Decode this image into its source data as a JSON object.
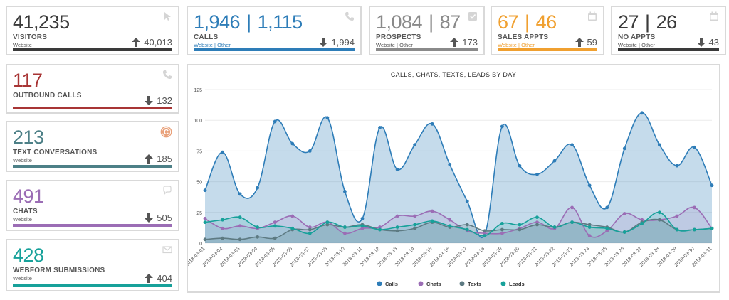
{
  "colors": {
    "visitors": "#3a3a3a",
    "calls": "#2e7db8",
    "prospects": "#8a8a8a",
    "sales": "#f0a030",
    "noappts": "#3a3a3a",
    "outbound": "#a83535",
    "texts": "#4d8087",
    "chats": "#9b6db5",
    "webform": "#17a19a",
    "icon": "#d5d5d5"
  },
  "cards": {
    "visitors": {
      "value": "41,235",
      "label": "VISITORS",
      "sub": "Website",
      "delta_dir": "up",
      "delta": "40,013",
      "icon": "cursor-icon"
    },
    "calls": {
      "value1": "1,946",
      "value2": "1,115",
      "sep": "|",
      "label": "CALLS",
      "sub": "Website | Other",
      "delta_dir": "down",
      "delta": "1,994",
      "icon": "phone-icon"
    },
    "prospects": {
      "value1": "1,084",
      "value2": "87",
      "sep": "|",
      "label": "PROSPECTS",
      "sub": "Website | Other",
      "delta_dir": "up",
      "delta": "173",
      "icon": "checkbox-icon"
    },
    "sales_appts": {
      "value1": "67",
      "value2": "46",
      "sep": "|",
      "label": "SALES APPTS",
      "sub": "Website | Other",
      "delta_dir": "up",
      "delta": "59",
      "icon": "calendar-icon"
    },
    "no_appts": {
      "value1": "27",
      "value2": "26",
      "sep": "|",
      "label": "NO APPTS",
      "sub": "Website | Other",
      "delta_dir": "down",
      "delta": "43",
      "icon": "calendar-icon"
    },
    "outbound": {
      "value": "117",
      "label": "OUTBOUND CALLS",
      "sub": "",
      "delta_dir": "down",
      "delta": "132",
      "icon": "phone-icon"
    },
    "texts": {
      "value": "213",
      "label": "TEXT CONVERSATIONS",
      "sub": "Website",
      "delta_dir": "up",
      "delta": "185",
      "icon": "text-c-icon"
    },
    "chats": {
      "value": "491",
      "label": "CHATS",
      "sub": "Website",
      "delta_dir": "down",
      "delta": "505",
      "icon": "chat-bubble-icon"
    },
    "webform": {
      "value": "428",
      "label": "WEBFORM SUBMISSIONS",
      "sub": "Website",
      "delta_dir": "up",
      "delta": "404",
      "icon": "envelope-icon"
    }
  },
  "chart_data": {
    "type": "area",
    "title": "CALLS, CHATS, TEXTS, LEADS BY DAY",
    "ylim": [
      0,
      125
    ],
    "yticks": [
      0,
      25,
      50,
      75,
      100,
      125
    ],
    "grid": true,
    "legend_position": "bottom",
    "x": [
      "2018-03-01",
      "2018-03-02",
      "2018-03-03",
      "2018-03-04",
      "2018-03-05",
      "2018-03-06",
      "2018-03-07",
      "2018-03-08",
      "2018-03-10",
      "2018-03-11",
      "2018-03-12",
      "2018-03-13",
      "2018-03-14",
      "2018-03-15",
      "2018-03-16",
      "2018-03-17",
      "2018-03-18",
      "2018-03-19",
      "2018-03-20",
      "2018-03-21",
      "2018-03-22",
      "2018-03-23",
      "2018-03-24",
      "2018-03-25",
      "2018-03-26",
      "2018-03-27",
      "2018-03-28",
      "2018-03-29",
      "2018-03-30",
      "2018-03-31"
    ],
    "series": [
      {
        "name": "Calls",
        "color": "#2e7db8",
        "values": [
          43,
          74,
          40,
          45,
          99,
          81,
          75,
          102,
          42,
          20,
          94,
          60,
          80,
          97,
          64,
          34,
          7,
          95,
          63,
          56,
          67,
          80,
          47,
          29,
          77,
          106,
          80,
          63,
          78,
          47
        ]
      },
      {
        "name": "Chats",
        "color": "#9b6db5",
        "values": [
          20,
          12,
          14,
          12,
          17,
          22,
          13,
          17,
          8,
          12,
          13,
          22,
          22,
          26,
          19,
          10,
          8,
          8,
          12,
          17,
          12,
          29,
          6,
          10,
          24,
          19,
          19,
          22,
          29,
          12
        ]
      },
      {
        "name": "Texts",
        "color": "#5d7a82",
        "values": [
          3,
          4,
          3,
          5,
          4,
          11,
          11,
          15,
          13,
          15,
          11,
          10,
          12,
          17,
          13,
          15,
          10,
          11,
          11,
          15,
          13,
          17,
          15,
          13,
          9,
          17,
          19,
          11,
          11,
          12
        ]
      },
      {
        "name": "Leads",
        "color": "#17a19a",
        "values": [
          17,
          19,
          21,
          13,
          14,
          12,
          8,
          17,
          13,
          14,
          11,
          13,
          15,
          18,
          14,
          11,
          6,
          16,
          15,
          21,
          13,
          17,
          13,
          12,
          9,
          16,
          25,
          11,
          11,
          12
        ]
      }
    ]
  }
}
